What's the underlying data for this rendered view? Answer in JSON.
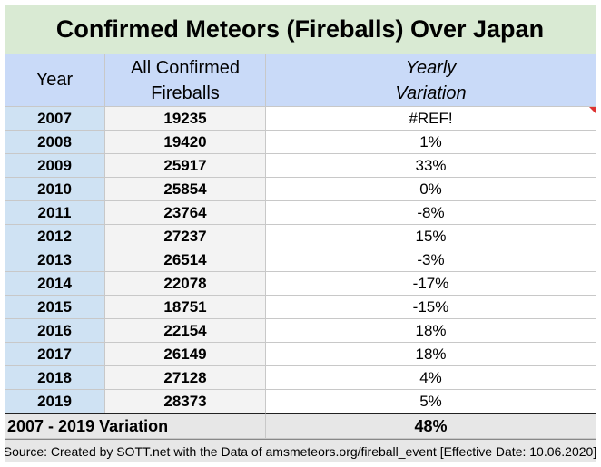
{
  "title": "Confirmed Meteors (Fireballs) Over Japan",
  "header": {
    "year": "Year",
    "fireballs": [
      "All Confirmed",
      "Fireballs"
    ],
    "variation": [
      "Yearly",
      "Variation"
    ]
  },
  "rows": [
    [
      "2007",
      "19235",
      "#REF!"
    ],
    [
      "2008",
      "19420",
      "1%"
    ],
    [
      "2009",
      "25917",
      "33%"
    ],
    [
      "2010",
      "25854",
      "0%"
    ],
    [
      "2011",
      "23764",
      "-8%"
    ],
    [
      "2012",
      "27237",
      "15%"
    ],
    [
      "2013",
      "26514",
      "-3%"
    ],
    [
      "2014",
      "22078",
      "-17%"
    ],
    [
      "2015",
      "18751",
      "-15%"
    ],
    [
      "2016",
      "22154",
      "18%"
    ],
    [
      "2017",
      "26149",
      "18%"
    ],
    [
      "2018",
      "27128",
      "4%"
    ],
    [
      "2019",
      "28373",
      "5%"
    ]
  ],
  "total": {
    "label": "2007 - 2019 Variation",
    "value": "48%"
  },
  "source": "Source: Created by SOTT.net with the Data of amsmeteors.org/fireball_event [Effective Date: 10.06.2020]"
}
